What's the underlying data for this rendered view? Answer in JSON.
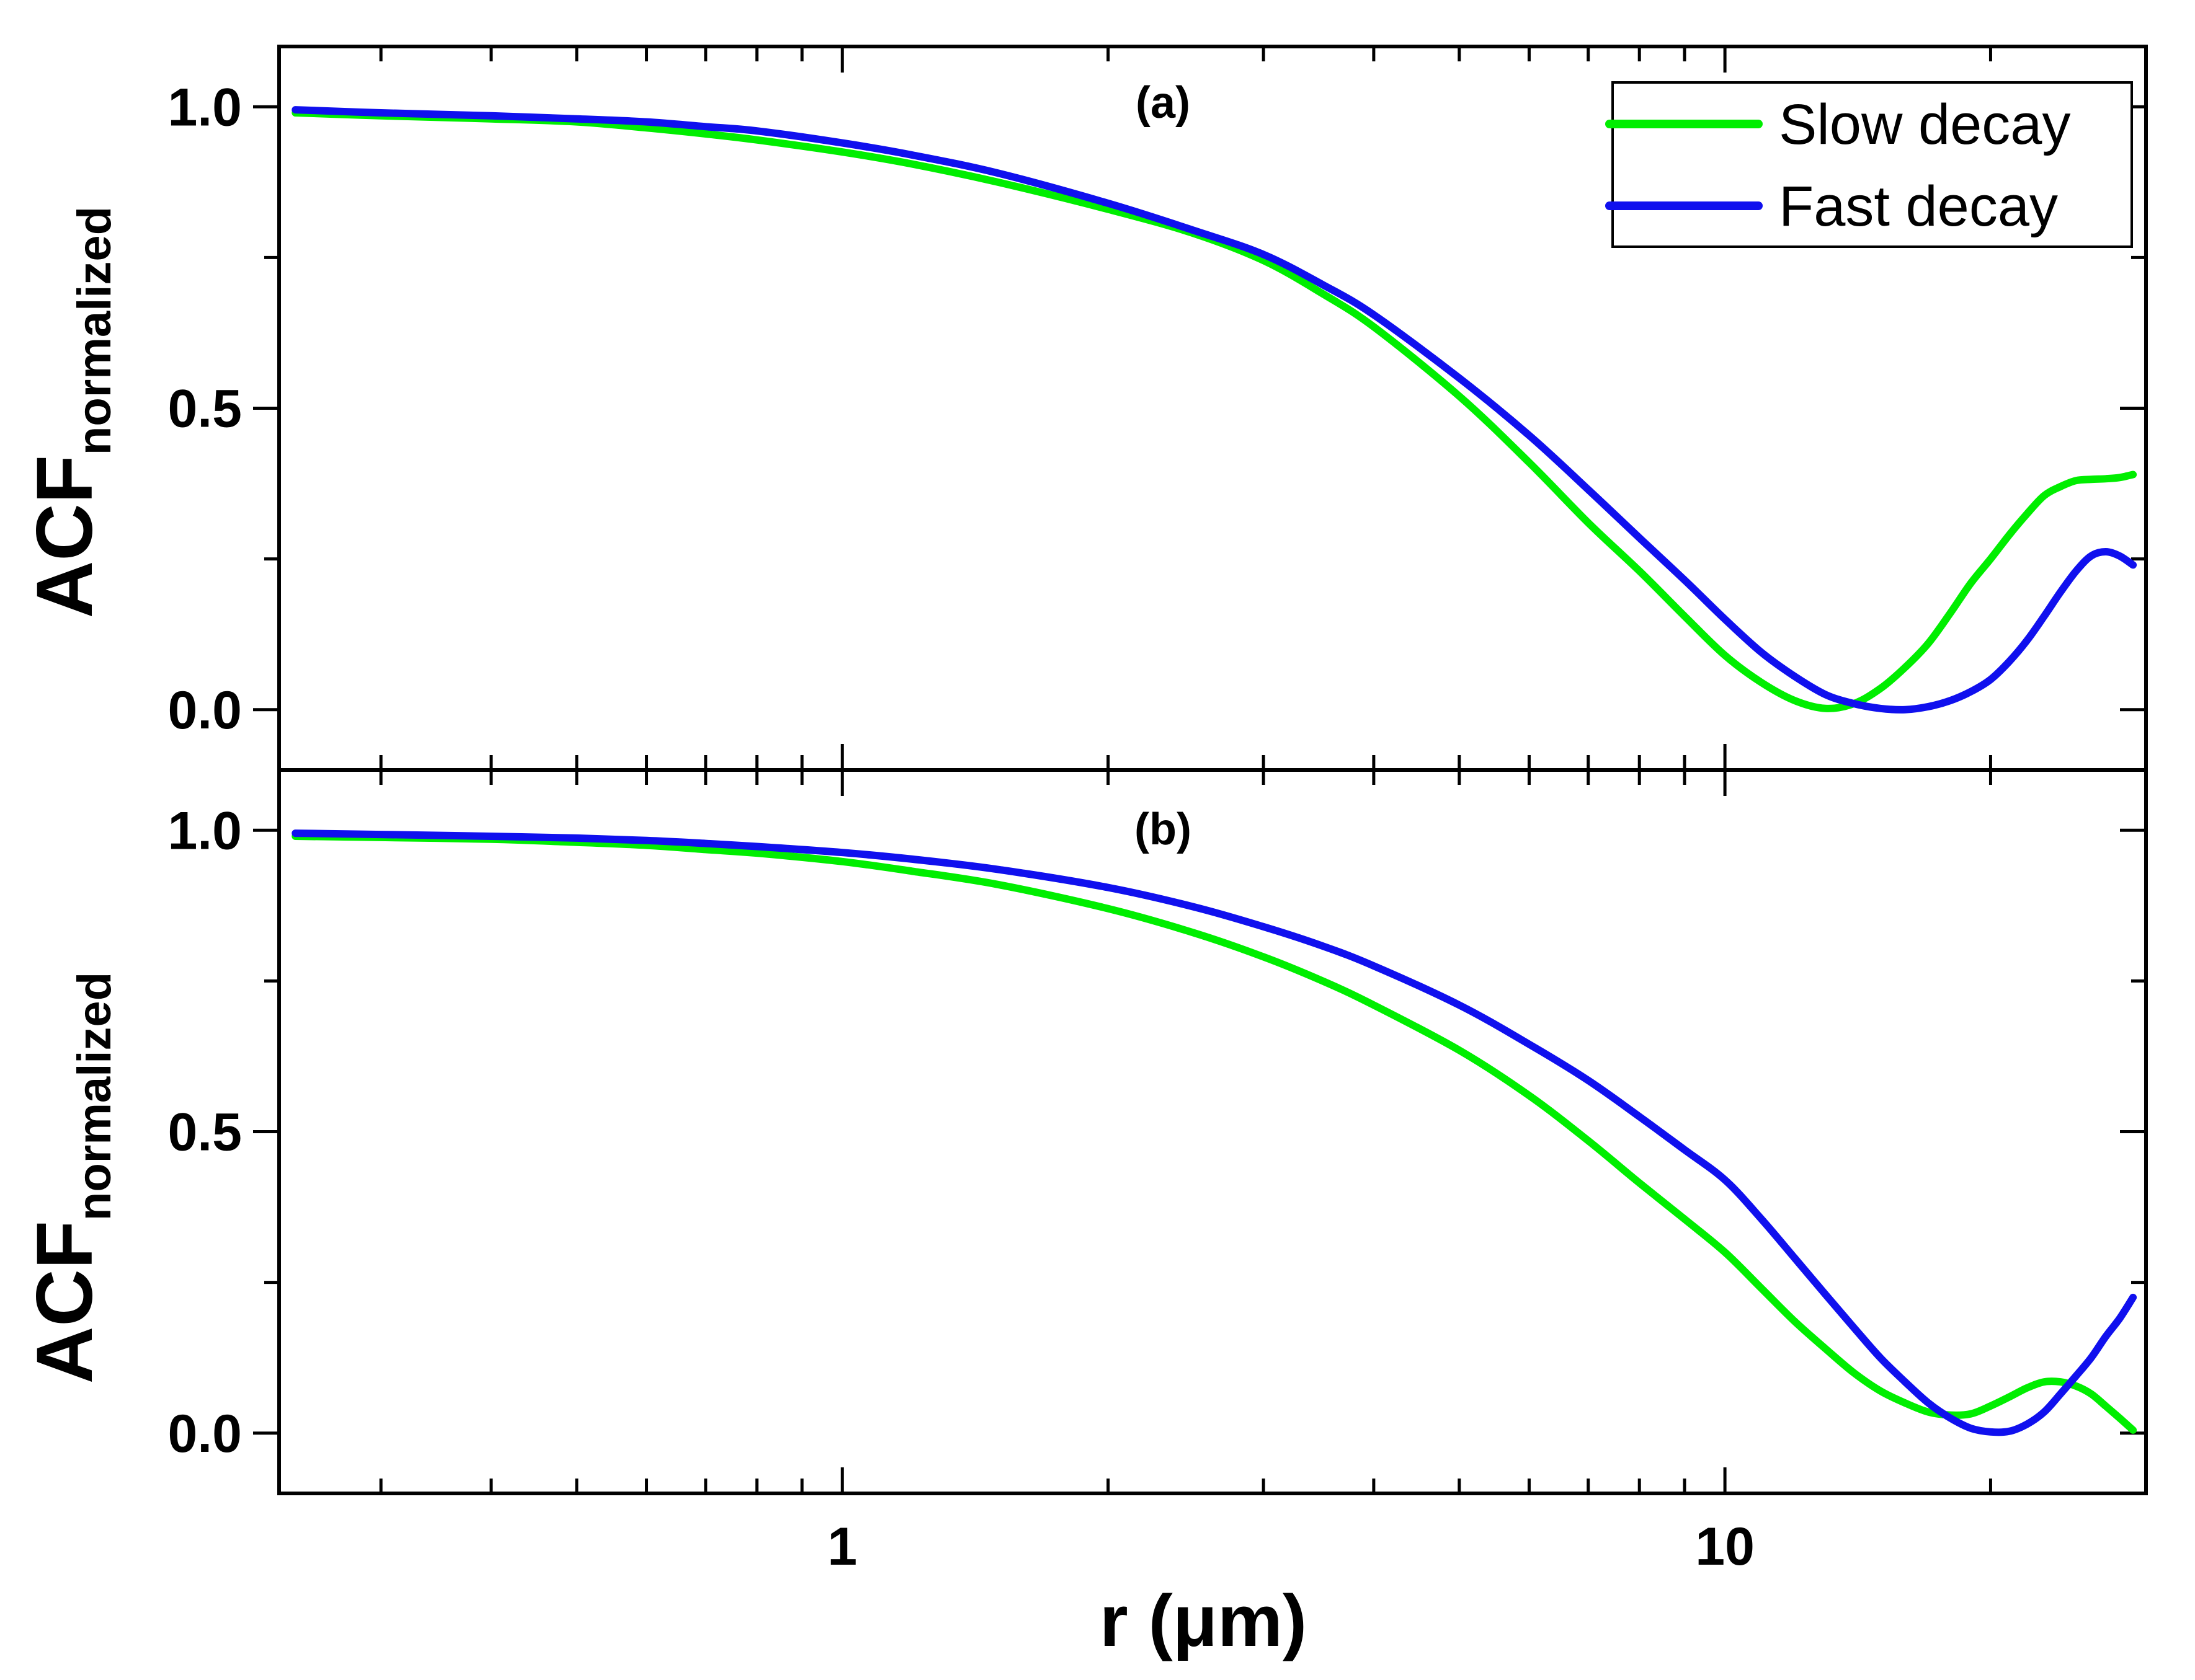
{
  "chart_data": [
    {
      "type": "line",
      "panel_label": "(a)",
      "xlabel": "r (μm)",
      "ylabel": "ACF",
      "ylabel_subscript": "normalized",
      "xscale": "log",
      "xlim": [
        0.23,
        30
      ],
      "ylim": [
        -0.1,
        1.1
      ],
      "yticks": [
        0.0,
        0.5,
        1.0
      ],
      "ytick_labels": [
        "0.0",
        "0.5",
        "1.0"
      ],
      "legend": {
        "placement": "top-right",
        "entries": [
          "Slow decay",
          "Fast decay"
        ]
      },
      "series": [
        {
          "name": "Slow decay",
          "color": "#00ee00",
          "x": [
            0.24,
            0.3,
            0.4,
            0.5,
            0.6,
            0.7,
            0.8,
            1.0,
            1.2,
            1.5,
            2.0,
            2.5,
            3.0,
            3.5,
            4.0,
            5.0,
            6.0,
            7.0,
            8.0,
            9.0,
            10.0,
            11.0,
            12.0,
            13.0,
            14.0,
            15.0,
            16.0,
            17.0,
            18.0,
            19.0,
            20.0,
            21.0,
            22.0,
            23.0,
            24.0,
            25.0,
            26.0,
            27.0,
            28.0,
            29.0
          ],
          "y": [
            0.99,
            0.985,
            0.98,
            0.975,
            0.965,
            0.955,
            0.945,
            0.925,
            0.905,
            0.875,
            0.83,
            0.79,
            0.745,
            0.69,
            0.635,
            0.52,
            0.41,
            0.31,
            0.23,
            0.155,
            0.09,
            0.045,
            0.015,
            0.002,
            0.01,
            0.035,
            0.07,
            0.11,
            0.16,
            0.21,
            0.25,
            0.29,
            0.325,
            0.355,
            0.37,
            0.38,
            0.382,
            0.383,
            0.385,
            0.39
          ]
        },
        {
          "name": "Fast decay",
          "color": "#1010ee",
          "x": [
            0.24,
            0.3,
            0.4,
            0.5,
            0.6,
            0.7,
            0.8,
            1.0,
            1.2,
            1.5,
            2.0,
            2.5,
            3.0,
            3.5,
            4.0,
            5.0,
            6.0,
            7.0,
            8.0,
            9.0,
            10.0,
            11.0,
            12.0,
            13.0,
            14.0,
            15.0,
            16.0,
            17.0,
            18.0,
            19.0,
            20.0,
            21.0,
            22.0,
            23.0,
            24.0,
            25.0,
            26.0,
            27.0,
            28.0,
            29.0
          ],
          "y": [
            0.995,
            0.99,
            0.985,
            0.98,
            0.975,
            0.967,
            0.96,
            0.94,
            0.92,
            0.89,
            0.84,
            0.795,
            0.755,
            0.705,
            0.655,
            0.55,
            0.455,
            0.365,
            0.285,
            0.215,
            0.15,
            0.095,
            0.055,
            0.025,
            0.01,
            0.002,
            0.0,
            0.005,
            0.015,
            0.03,
            0.05,
            0.08,
            0.115,
            0.155,
            0.195,
            0.23,
            0.255,
            0.262,
            0.255,
            0.24
          ]
        }
      ]
    },
    {
      "type": "line",
      "panel_label": "(b)",
      "xlabel": "r (μm)",
      "ylabel": "ACF",
      "ylabel_subscript": "normalized",
      "xscale": "log",
      "xlim": [
        0.23,
        30
      ],
      "ylim": [
        -0.1,
        1.1
      ],
      "xticks": [
        1,
        10
      ],
      "xtick_labels": [
        "1",
        "10"
      ],
      "yticks": [
        0.0,
        0.5,
        1.0
      ],
      "ytick_labels": [
        "0.0",
        "0.5",
        "1.0"
      ],
      "series": [
        {
          "name": "Slow decay",
          "color": "#00ee00",
          "x": [
            0.24,
            0.3,
            0.4,
            0.5,
            0.6,
            0.7,
            0.8,
            1.0,
            1.2,
            1.5,
            2.0,
            2.5,
            3.0,
            3.5,
            4.0,
            5.0,
            6.0,
            7.0,
            8.0,
            9.0,
            10.0,
            11.0,
            12.0,
            13.0,
            14.0,
            15.0,
            16.0,
            17.0,
            18.0,
            19.0,
            20.0,
            21.0,
            22.0,
            23.0,
            24.0,
            25.0,
            26.0,
            27.0,
            28.0,
            29.0
          ],
          "y": [
            0.99,
            0.988,
            0.985,
            0.98,
            0.975,
            0.968,
            0.962,
            0.948,
            0.932,
            0.91,
            0.87,
            0.83,
            0.79,
            0.75,
            0.71,
            0.635,
            0.56,
            0.485,
            0.415,
            0.355,
            0.3,
            0.24,
            0.185,
            0.14,
            0.1,
            0.07,
            0.05,
            0.035,
            0.03,
            0.032,
            0.045,
            0.06,
            0.075,
            0.085,
            0.085,
            0.078,
            0.065,
            0.045,
            0.025,
            0.005
          ]
        },
        {
          "name": "Fast decay",
          "color": "#1010ee",
          "x": [
            0.24,
            0.3,
            0.4,
            0.5,
            0.6,
            0.7,
            0.8,
            1.0,
            1.2,
            1.5,
            2.0,
            2.5,
            3.0,
            3.5,
            4.0,
            5.0,
            6.0,
            7.0,
            8.0,
            9.0,
            10.0,
            11.0,
            12.0,
            13.0,
            14.0,
            15.0,
            16.0,
            17.0,
            18.0,
            19.0,
            20.0,
            21.0,
            22.0,
            23.0,
            24.0,
            25.0,
            26.0,
            27.0,
            28.0,
            29.0
          ],
          "y": [
            0.995,
            0.993,
            0.99,
            0.987,
            0.983,
            0.978,
            0.973,
            0.963,
            0.952,
            0.935,
            0.905,
            0.873,
            0.84,
            0.808,
            0.775,
            0.71,
            0.645,
            0.585,
            0.525,
            0.47,
            0.42,
            0.355,
            0.29,
            0.23,
            0.175,
            0.125,
            0.085,
            0.05,
            0.025,
            0.008,
            0.002,
            0.003,
            0.015,
            0.035,
            0.065,
            0.095,
            0.125,
            0.16,
            0.19,
            0.225
          ]
        }
      ]
    }
  ]
}
